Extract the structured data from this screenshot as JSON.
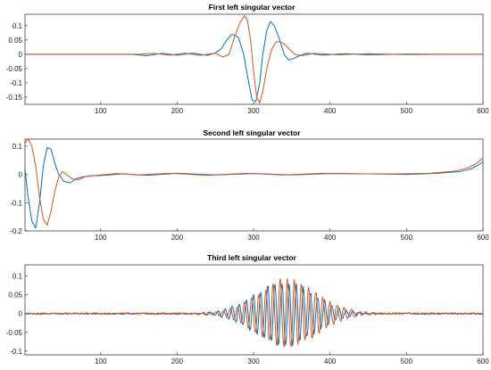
{
  "colors": {
    "series1": "#0072BD",
    "series2": "#D95319",
    "axis": "#262626"
  },
  "chart_data": [
    {
      "type": "line",
      "title": "First left singular vector",
      "xlim": [
        1,
        600
      ],
      "ylim": [
        -0.175,
        0.14
      ],
      "xticks": [
        100,
        200,
        300,
        400,
        500,
        600
      ],
      "yticks": [
        -0.15,
        -0.1,
        -0.05,
        0,
        0.05,
        0.1
      ],
      "ytick_labels": [
        "-0.15",
        "-0.1",
        "-0.05",
        "0",
        "0.05",
        "0.1"
      ],
      "grid": false,
      "series": [
        {
          "color": "#0072BD",
          "x": [
            1,
            140,
            160,
            180,
            200,
            220,
            240,
            250,
            258,
            265,
            272,
            280,
            287,
            293,
            298,
            303,
            308,
            312,
            317,
            322,
            327,
            333,
            340,
            346,
            352,
            360,
            370,
            390,
            420,
            450,
            500,
            550,
            600
          ],
          "y": [
            0,
            0,
            -0.005,
            0.003,
            -0.003,
            0.004,
            -0.004,
            0.005,
            0.02,
            0.05,
            0.07,
            0.06,
            0.0,
            -0.09,
            -0.16,
            -0.165,
            -0.1,
            0.0,
            0.08,
            0.115,
            0.1,
            0.06,
            0.0,
            -0.02,
            -0.015,
            -0.005,
            0.004,
            -0.003,
            0.002,
            -0.002,
            0.001,
            0,
            0
          ]
        },
        {
          "color": "#D95319",
          "x": [
            1,
            150,
            170,
            190,
            210,
            230,
            250,
            260,
            268,
            275,
            282,
            288,
            292,
            296,
            300,
            304,
            308,
            312,
            318,
            324,
            330,
            338,
            346,
            354,
            362,
            380,
            410,
            450,
            500,
            550,
            600
          ],
          "y": [
            0,
            0,
            0.003,
            -0.003,
            0.004,
            -0.004,
            0.004,
            -0.01,
            0.0,
            0.06,
            0.11,
            0.135,
            0.12,
            0.05,
            -0.06,
            -0.15,
            -0.17,
            -0.13,
            -0.04,
            0.02,
            0.045,
            0.04,
            0.02,
            0.0,
            -0.005,
            0.003,
            -0.002,
            0.002,
            -0.001,
            0,
            0
          ]
        }
      ]
    },
    {
      "type": "line",
      "title": "Second left singular vector",
      "xlim": [
        1,
        600
      ],
      "ylim": [
        -0.2,
        0.125
      ],
      "xticks": [
        100,
        200,
        300,
        400,
        500,
        600
      ],
      "yticks": [
        -0.2,
        -0.1,
        0,
        0.1
      ],
      "ytick_labels": [
        "-0.2",
        "-0.1",
        "0",
        "0.1"
      ],
      "grid": false,
      "series": [
        {
          "color": "#0072BD",
          "x": [
            1,
            5,
            10,
            15,
            20,
            25,
            30,
            35,
            40,
            45,
            52,
            60,
            68,
            75,
            85,
            100,
            130,
            160,
            200,
            250,
            300,
            350,
            400,
            450,
            500,
            540,
            570,
            585,
            595,
            600
          ],
          "y": [
            0.02,
            -0.08,
            -0.165,
            -0.19,
            -0.1,
            0.03,
            0.095,
            0.09,
            0.04,
            0.0,
            -0.025,
            -0.03,
            -0.015,
            -0.01,
            -0.005,
            -0.004,
            0.002,
            -0.003,
            0.004,
            -0.002,
            0.003,
            -0.002,
            0.003,
            0.002,
            0.0,
            0.004,
            0.01,
            0.02,
            0.035,
            0.045
          ]
        },
        {
          "color": "#D95319",
          "x": [
            1,
            5,
            10,
            15,
            20,
            25,
            30,
            35,
            40,
            45,
            50,
            55,
            62,
            70,
            80,
            95,
            120,
            150,
            190,
            240,
            290,
            340,
            390,
            440,
            490,
            530,
            565,
            582,
            592,
            600
          ],
          "y": [
            0.11,
            0.125,
            0.1,
            0.03,
            -0.08,
            -0.16,
            -0.18,
            -0.13,
            -0.06,
            -0.01,
            0.01,
            0.0,
            -0.015,
            -0.02,
            -0.008,
            -0.003,
            0.003,
            -0.002,
            0.004,
            -0.003,
            0.004,
            -0.002,
            0.004,
            0.002,
            0.002,
            0.004,
            0.012,
            0.025,
            0.04,
            0.058
          ]
        }
      ]
    },
    {
      "type": "line",
      "title": "Third left singular vector",
      "xlim": [
        1,
        600
      ],
      "ylim": [
        -0.11,
        0.13
      ],
      "xticks": [
        100,
        200,
        300,
        400,
        500,
        600
      ],
      "yticks": [
        -0.1,
        -0.05,
        0,
        0.05,
        0.1
      ],
      "ytick_labels": [
        "-0.1",
        "-0.05",
        "0",
        "0.05",
        "0.1"
      ],
      "grid": false,
      "series": [
        {
          "color": "#0072BD",
          "oscillation": {
            "center": 340,
            "width": 55,
            "amplitude": 0.085,
            "period": 9.3,
            "phase": 0,
            "noise": 0.004
          }
        },
        {
          "color": "#D95319",
          "oscillation": {
            "center": 345,
            "width": 55,
            "amplitude": 0.09,
            "period": 9.3,
            "phase": 1.6,
            "noise": 0.005
          }
        }
      ]
    }
  ]
}
